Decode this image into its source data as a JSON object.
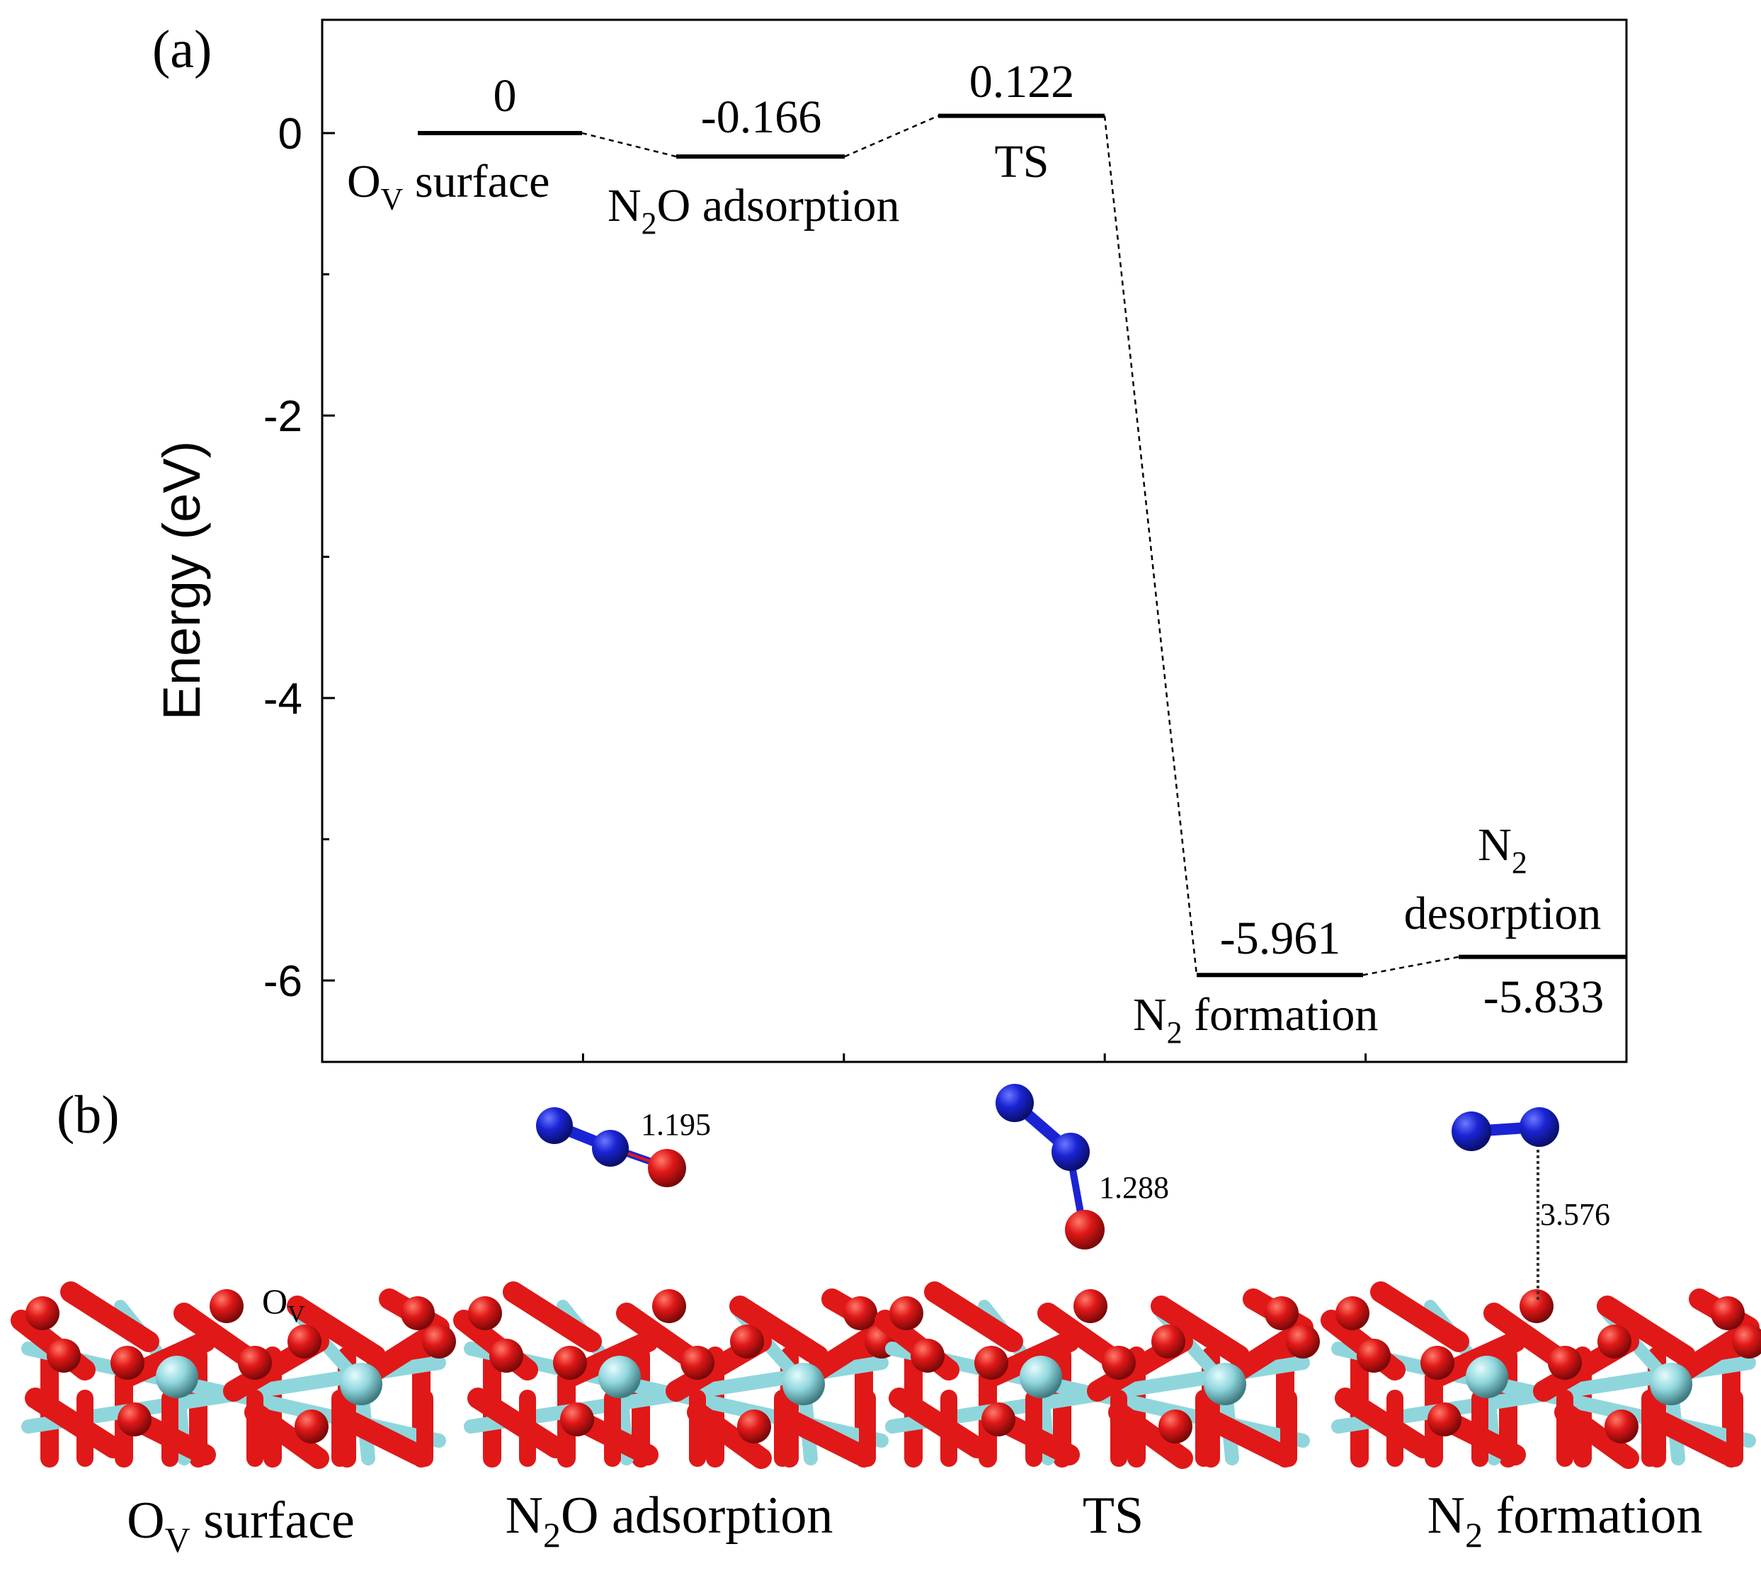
{
  "panel_a_label": "(a)",
  "panel_b_label": "(b)",
  "chart_data": {
    "type": "energy_profile",
    "title": "",
    "xlabel": "",
    "ylabel": "Energy (eV)",
    "ylim": [
      -6.6,
      0.8
    ],
    "yticks": [
      0,
      -2,
      -4,
      -6
    ],
    "ytick_labels": [
      "0",
      "-2",
      "-4",
      "-6"
    ],
    "grid": false,
    "states": [
      {
        "id": "ov",
        "name": "O",
        "sub": "V",
        "suffix": " surface",
        "energy": 0,
        "label": "0"
      },
      {
        "id": "n2o",
        "name": "N",
        "sub": "2",
        "suffix": "O adsorption",
        "energy": -0.166,
        "label": "-0.166"
      },
      {
        "id": "ts",
        "name": "TS",
        "sub": "",
        "suffix": "",
        "energy": 0.122,
        "label": "0.122"
      },
      {
        "id": "n2f",
        "name": "N",
        "sub": "2",
        "suffix": " formation",
        "energy": -5.961,
        "label": "-5.961"
      },
      {
        "id": "n2d",
        "name": "N",
        "sub": "2",
        "suffix": "desorption",
        "energy": -5.833,
        "label": "-5.833"
      }
    ]
  },
  "panel_b": {
    "structures": [
      {
        "caption_main": "O",
        "caption_sub": "V",
        "caption_rest": " surface",
        "bond_label": "",
        "site_main": "O",
        "site_sub": "V"
      },
      {
        "caption_main": "N",
        "caption_sub": "2",
        "caption_rest": "O adsorption",
        "bond_label": "1.195"
      },
      {
        "caption_main": "TS",
        "caption_sub": "",
        "caption_rest": "",
        "bond_label": "1.288"
      },
      {
        "caption_main": "N",
        "caption_sub": "2",
        "caption_rest": " formation",
        "bond_label": "3.576"
      }
    ]
  },
  "colors": {
    "oxygen": "#e01818",
    "oxygen_dark": "#9a0c0c",
    "nitrogen": "#1a24d4",
    "metal": "#8fd6dc",
    "metal_dark": "#5a9aa0",
    "axis": "#000000"
  }
}
